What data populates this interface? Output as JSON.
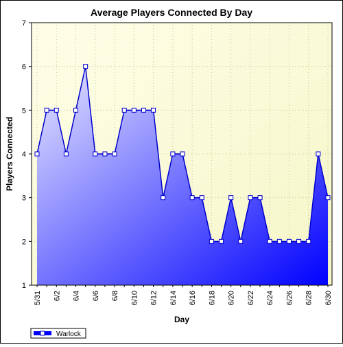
{
  "chart_data": {
    "type": "area",
    "title": "Average Players Connected By Day",
    "xlabel": "Day",
    "ylabel": "Players Connected",
    "ylim": [
      1,
      7
    ],
    "yticks": [
      1,
      2,
      3,
      4,
      5,
      6,
      7
    ],
    "x": [
      "5/31",
      "6/1",
      "6/2",
      "6/3",
      "6/4",
      "6/5",
      "6/6",
      "6/7",
      "6/8",
      "6/9",
      "6/10",
      "6/11",
      "6/12",
      "6/13",
      "6/14",
      "6/15",
      "6/16",
      "6/17",
      "6/18",
      "6/19",
      "6/20",
      "6/21",
      "6/22",
      "6/23",
      "6/24",
      "6/25",
      "6/26",
      "6/27",
      "6/28",
      "6/29",
      "6/30"
    ],
    "xtick_labels": [
      "5/31",
      "6/2",
      "6/4",
      "6/6",
      "6/8",
      "6/10",
      "6/12",
      "6/14",
      "6/16",
      "6/18",
      "6/20",
      "6/22",
      "6/24",
      "6/26",
      "6/28",
      "6/30"
    ],
    "series": [
      {
        "name": "Warlock",
        "values": [
          4,
          5,
          5,
          4,
          5,
          6,
          4,
          4,
          4,
          5,
          5,
          5,
          5,
          3,
          4,
          4,
          3,
          3,
          2,
          2,
          3,
          2,
          3,
          3,
          2,
          2,
          2,
          2,
          2,
          4,
          3
        ]
      }
    ],
    "grid": true,
    "legend": "bottom-left",
    "colors": {
      "plot_background_top": "#fefee8",
      "plot_background_bottom": "#f6f6c8",
      "fill_light": "#e8e8ff",
      "fill_dark": "#0000ff",
      "line": "#0000cc",
      "marker_fill": "#ffffff",
      "marker_stroke": "#0000cc",
      "grid": "#c8c8a0"
    }
  }
}
